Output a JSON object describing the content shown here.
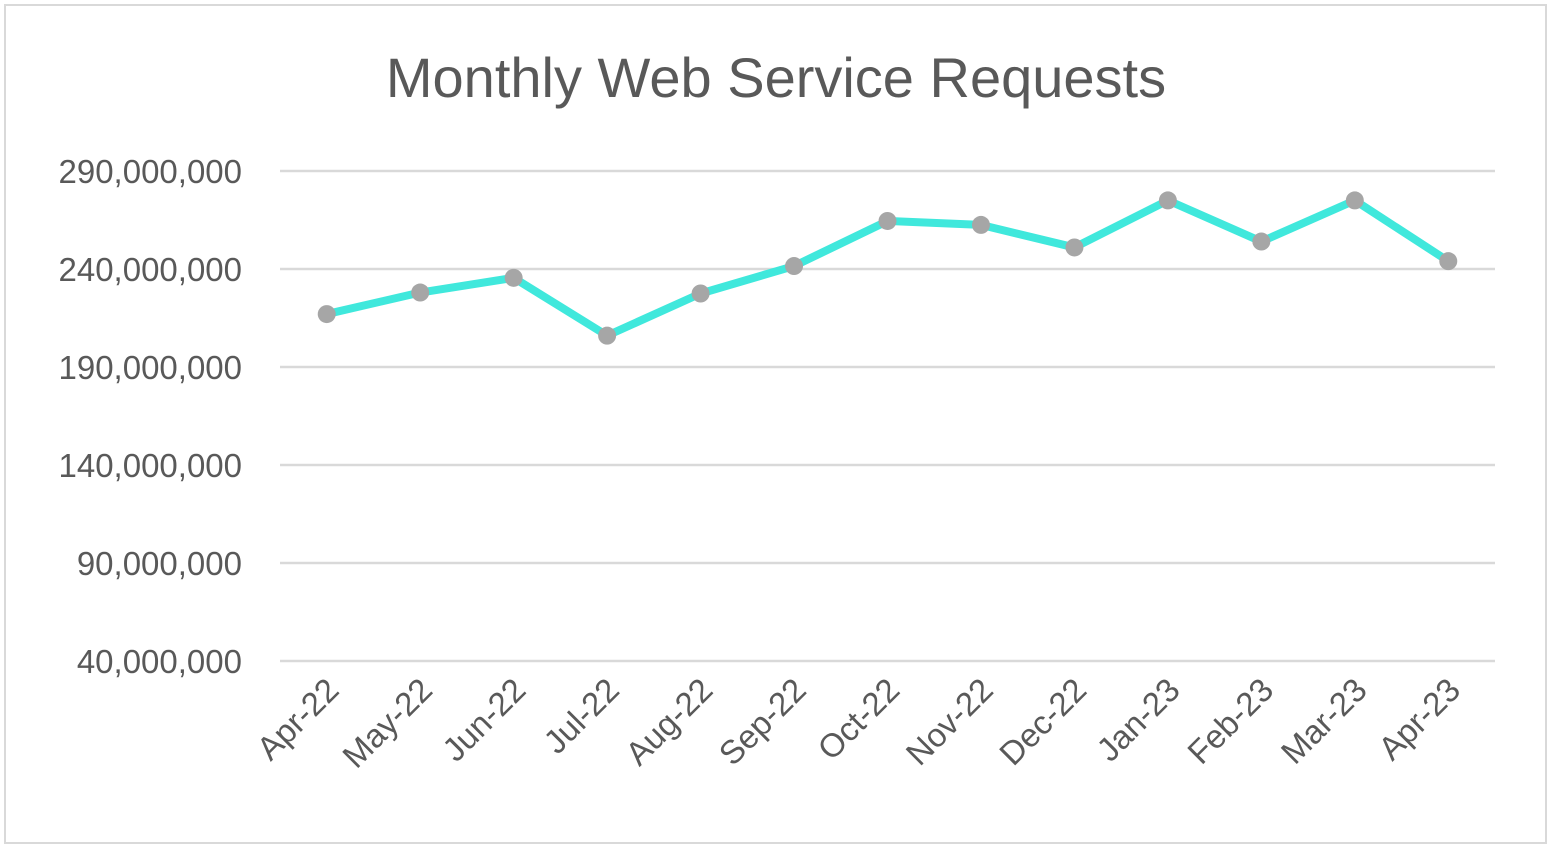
{
  "chart_data": {
    "type": "line",
    "title": "Monthly Web Service Requests",
    "xlabel": "",
    "ylabel": "",
    "categories": [
      "Apr-22",
      "May-22",
      "Jun-22",
      "Jul-22",
      "Aug-22",
      "Sep-22",
      "Oct-22",
      "Nov-22",
      "Dec-22",
      "Jan-23",
      "Feb-23",
      "Mar-23",
      "Apr-23"
    ],
    "series": [
      {
        "values": [
          217000000,
          228000000,
          235500000,
          206000000,
          227500000,
          241500000,
          264500000,
          262500000,
          251000000,
          275000000,
          254000000,
          275000000,
          244000000
        ]
      }
    ],
    "ylim": [
      40000000,
      290000000
    ],
    "yticks": [
      290000000,
      240000000,
      190000000,
      140000000,
      90000000,
      40000000
    ],
    "ytick_labels": [
      "290,000,000",
      "240,000,000",
      "190,000,000",
      "140,000,000",
      "90,000,000",
      "40,000,000"
    ],
    "grid": true,
    "legend": "none",
    "colors": {
      "line": "#40e8dc",
      "marker": "#a6a6a6",
      "grid": "#d9d9d9",
      "text": "#595959"
    }
  }
}
